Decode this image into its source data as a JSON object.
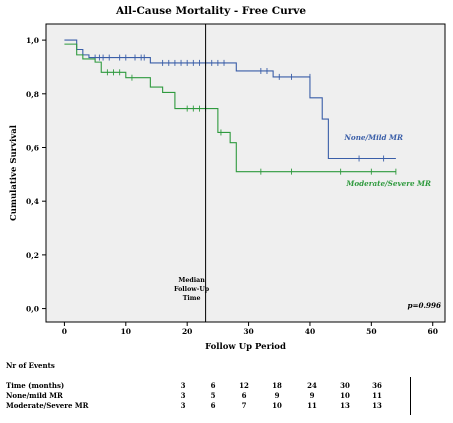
{
  "chart_data": {
    "type": "line",
    "title": "All-Cause Mortality - Free Curve",
    "xlabel": "Follow Up Period",
    "ylabel": "Cumulative Survival",
    "xlim": [
      -3,
      62
    ],
    "ylim": [
      -0.05,
      1.06
    ],
    "x_ticks": [
      0,
      10,
      20,
      30,
      40,
      50,
      60
    ],
    "y_ticks": [
      {
        "value": 0.0,
        "label": "0,0"
      },
      {
        "value": 0.2,
        "label": "0,2"
      },
      {
        "value": 0.4,
        "label": "0,4"
      },
      {
        "value": 0.6,
        "label": "0,6"
      },
      {
        "value": 0.8,
        "label": "0,8"
      },
      {
        "value": 1.0,
        "label": "1,0"
      }
    ],
    "grid": false,
    "background": "#efefef",
    "series": [
      {
        "name": "None/Mild MR",
        "color": "#3a5ea8",
        "steps": [
          [
            0,
            1.0
          ],
          [
            2,
            0.965
          ],
          [
            3,
            0.945
          ],
          [
            4,
            0.935
          ],
          [
            14,
            0.915
          ],
          [
            28,
            0.885
          ],
          [
            34,
            0.863
          ],
          [
            40,
            0.785
          ],
          [
            42,
            0.706
          ],
          [
            43,
            0.559
          ],
          [
            54,
            0.559
          ]
        ],
        "censored": [
          [
            5,
            0.935
          ],
          [
            5.7,
            0.935
          ],
          [
            6.3,
            0.935
          ],
          [
            7.3,
            0.935
          ],
          [
            9,
            0.935
          ],
          [
            10,
            0.935
          ],
          [
            11.5,
            0.935
          ],
          [
            12.5,
            0.935
          ],
          [
            13,
            0.935
          ],
          [
            16,
            0.915
          ],
          [
            17,
            0.915
          ],
          [
            18,
            0.915
          ],
          [
            19,
            0.915
          ],
          [
            20,
            0.915
          ],
          [
            21,
            0.915
          ],
          [
            22,
            0.915
          ],
          [
            23,
            0.915
          ],
          [
            24,
            0.915
          ],
          [
            25,
            0.915
          ],
          [
            26,
            0.915
          ],
          [
            32,
            0.885
          ],
          [
            33,
            0.885
          ],
          [
            35,
            0.863
          ],
          [
            37,
            0.863
          ],
          [
            40,
            0.863
          ],
          [
            48,
            0.559
          ],
          [
            52,
            0.559
          ]
        ]
      },
      {
        "name": "Moderate/Severe MR",
        "color": "#2f9a3e",
        "steps": [
          [
            0,
            0.985
          ],
          [
            2,
            0.945
          ],
          [
            3,
            0.93
          ],
          [
            5,
            0.918
          ],
          [
            6,
            0.88
          ],
          [
            10,
            0.86
          ],
          [
            14,
            0.825
          ],
          [
            16,
            0.805
          ],
          [
            18,
            0.745
          ],
          [
            25,
            0.656
          ],
          [
            27,
            0.618
          ],
          [
            28,
            0.51
          ],
          [
            54,
            0.51
          ]
        ],
        "censored": [
          [
            7,
            0.88
          ],
          [
            8,
            0.88
          ],
          [
            9,
            0.88
          ],
          [
            11,
            0.86
          ],
          [
            20,
            0.745
          ],
          [
            21,
            0.745
          ],
          [
            22,
            0.745
          ],
          [
            23,
            0.745
          ],
          [
            25.5,
            0.656
          ],
          [
            32,
            0.51
          ],
          [
            37,
            0.51
          ],
          [
            45,
            0.51
          ],
          [
            50,
            0.51
          ],
          [
            54,
            0.51
          ]
        ]
      }
    ],
    "median_followup": {
      "x": 23,
      "label_lines": [
        "Median",
        "Follow-Up",
        "Time"
      ]
    },
    "annotation": "p=0.996",
    "legend_placement": "right, beside curve ends"
  },
  "risk_table": {
    "heading": "Nr of Events",
    "rows": [
      {
        "label": "Time (months)",
        "values": [
          "3",
          "6",
          "12",
          "18",
          "24",
          "30",
          "36"
        ]
      },
      {
        "label": "None/mild MR",
        "values": [
          "3",
          "5",
          "6",
          "9",
          "9",
          "10",
          "11"
        ]
      },
      {
        "label": "Moderate/Severe MR",
        "values": [
          "3",
          "6",
          "7",
          "10",
          "11",
          "13",
          "13"
        ]
      }
    ]
  }
}
